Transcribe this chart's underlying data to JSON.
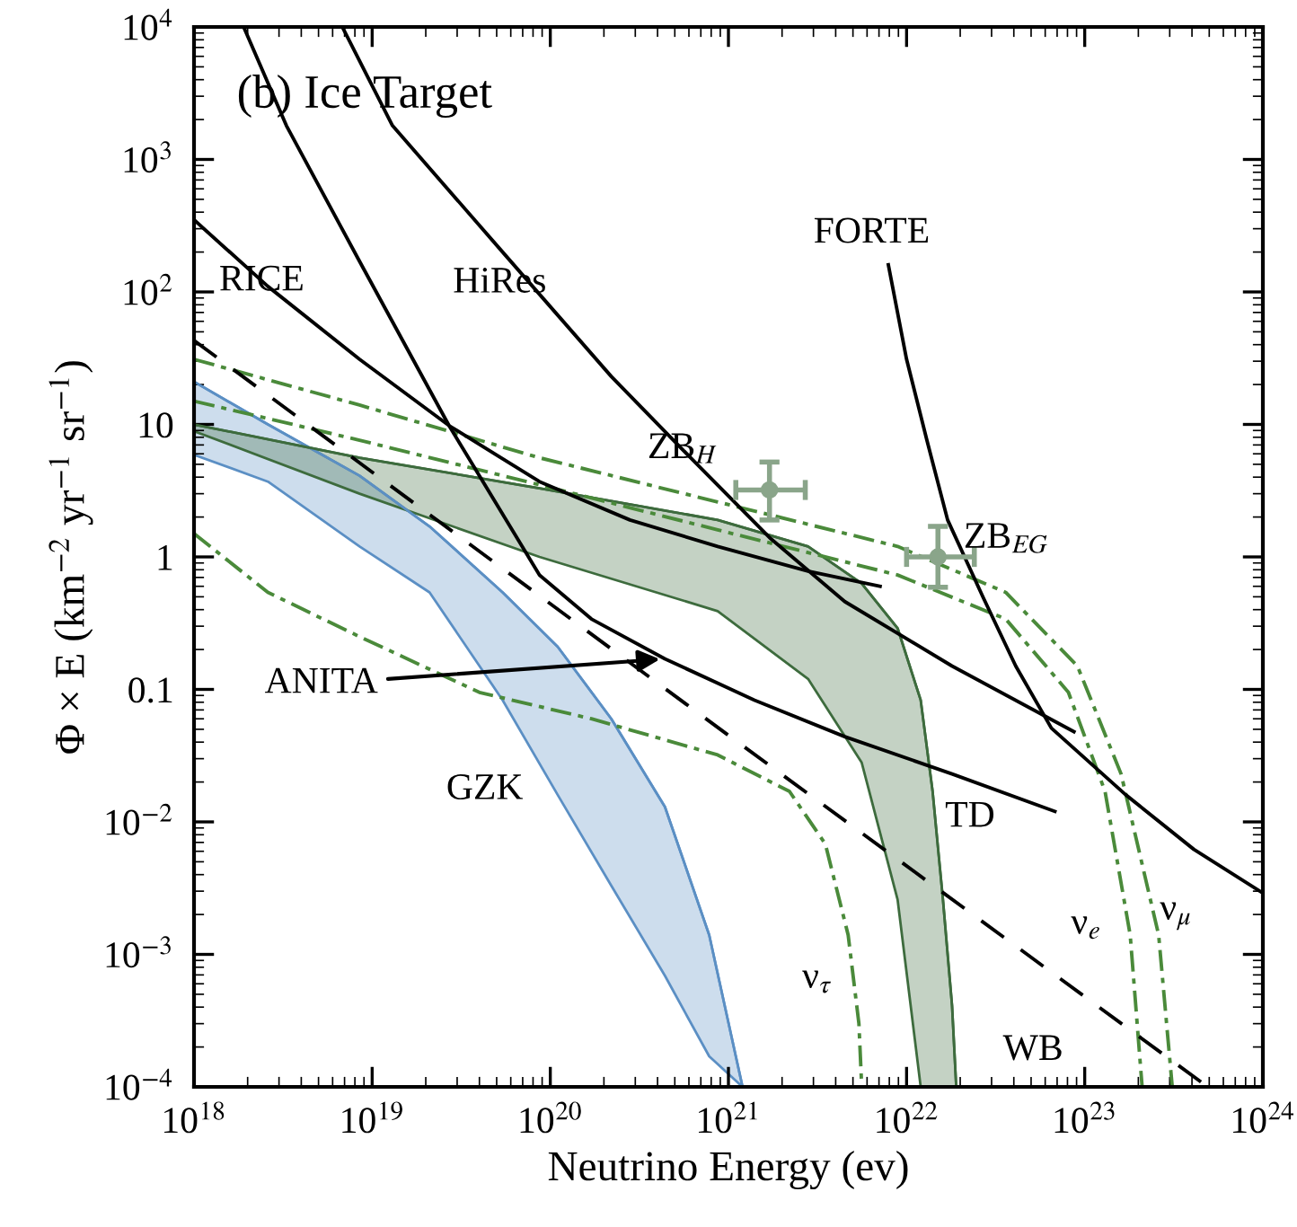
{
  "chart_data": {
    "type": "line",
    "title": "(b) Ice Target",
    "xlabel": "Neutrino Energy (ev)",
    "ylabel": "Φ × E (km$^{−2}$ yr$^{−1}$ sr$^{−1}$)",
    "log": "xy",
    "grid": false,
    "legend": false,
    "line_style": "solid",
    "marker": "none",
    "xlim": [
      1e+18,
      1e+24
    ],
    "ylim": [
      0.0001,
      10000.0
    ],
    "xticks": [
      {
        "value": 1e+18,
        "label": "10$^{18}$"
      },
      {
        "value": 1e+19,
        "label": "10$^{19}$"
      },
      {
        "value": 1e+20,
        "label": "10$^{20}$"
      },
      {
        "value": 1e+21,
        "label": "10$^{21}$"
      },
      {
        "value": 1e+22,
        "label": "10$^{22}$"
      },
      {
        "value": 1e+23,
        "label": "10$^{23}$"
      },
      {
        "value": 1e+24,
        "label": "10$^{24}$"
      }
    ],
    "yticks": [
      {
        "value": 0.0001,
        "label": "10$^{−4}$"
      },
      {
        "value": 0.001,
        "label": "10$^{−3}$"
      },
      {
        "value": 0.01,
        "label": "10$^{−2}$"
      },
      0.1,
      1,
      10,
      {
        "value": 100,
        "label": "10$^{2}$"
      },
      {
        "value": 1000,
        "label": "10$^{3}$"
      },
      {
        "value": 10000,
        "label": "10$^{4}$"
      }
    ],
    "series": [
      {
        "type": "line",
        "color": "#5b8fc4",
        "x": [
          1e+18,
          2.6e+18,
          8.5e+18,
          2.1e+19,
          5.4e+19,
          1.1e+20,
          2.2e+20,
          4.4e+20,
          7.8e+20,
          1.2e+21
        ],
        "values": [
          21,
          10,
          4.1,
          1.7,
          0.54,
          0.21,
          0.06,
          0.013,
          0.0014,
          0.0001
        ],
        "upper": [
          21,
          10,
          4.1,
          1.7,
          0.54,
          0.21,
          0.06,
          0.013,
          0.0014,
          0.0001
        ],
        "lower": [
          5.9,
          3.7,
          1.2,
          0.54,
          0.083,
          0.016,
          0.0033,
          0.00069,
          0.00017,
          0.0001
        ]
      },
      {
        "type": "line",
        "color": "#3d6b3d",
        "x": [
          1e+18,
          8.5e+18,
          8.7e+19,
          8.7e+20,
          2.8e+21,
          5.6e+21,
          8.9e+21,
          1.2e+22,
          1.4e+22,
          1.6e+22,
          1.8e+22,
          1.9e+22
        ],
        "values": [
          10,
          5.6,
          3.3,
          1.9,
          1.2,
          0.63,
          0.29,
          0.083,
          0.017,
          0.0026,
          0.00041,
          0.0001
        ],
        "upper": [
          10,
          5.6,
          3.3,
          1.9,
          1.2,
          0.63,
          0.29,
          0.083,
          0.017,
          0.0026,
          0.00041,
          0.0001
        ],
        "lower": [
          8.9,
          3.0,
          1.0,
          0.39,
          0.12,
          0.028,
          0.0026,
          0.0001,
          0.0001,
          0.0001,
          0.0001,
          0.0001
        ]
      },
      {
        "color": "#4a8a3a",
        "line_style": "dashdot",
        "x": [
          1e+18,
          8.5e+18,
          8.7e+19,
          8.7e+20,
          8.9e+21,
          3.6e+22,
          9.1e+22,
          1.6e+23,
          2.6e+23,
          3.1e+23
        ],
        "values": [
          31,
          14,
          5.6,
          2.6,
          1.2,
          0.54,
          0.15,
          0.023,
          0.0014,
          0.0001
        ]
      },
      {
        "color": "#4a8a3a",
        "line_style": "dashdot",
        "x": [
          1e+18,
          8.5e+18,
          8.7e+19,
          8.7e+20,
          8.9e+21,
          3.6e+22,
          8.1e+22,
          1.3e+23,
          1.8e+23,
          2.1e+23
        ],
        "values": [
          15,
          7.6,
          3.5,
          1.6,
          0.73,
          0.34,
          0.095,
          0.017,
          0.0014,
          0.0001
        ]
      },
      {
        "color": "#4a8a3a",
        "line_style": "dashdot",
        "x": [
          1e+18,
          2.6e+18,
          8.5e+18,
          4e+19,
          1.7e+20,
          8.7e+20,
          2.2e+21,
          3.5e+21,
          4.7e+21,
          5.4e+21,
          5.6e+21
        ],
        "values": [
          1.5,
          0.54,
          0.25,
          0.095,
          0.06,
          0.032,
          0.017,
          0.0068,
          0.0014,
          0.0003,
          0.0001
        ]
      },
      {
        "color": "#000000",
        "line_style": "dashed",
        "x": [
          1e+18,
          6.9e+20,
          4.9e+23
        ],
        "values": [
          43,
          0.065,
          0.0001
        ]
      },
      {
        "color": "#000000",
        "x": [
          1e+18,
          2.6e+18,
          8.5e+18,
          2.7e+19,
          8.7e+19,
          2.8e+20,
          8.7e+20,
          2.8e+21,
          7.1e+21
        ],
        "values": [
          350,
          110,
          31,
          9.8,
          3.7,
          1.9,
          1.2,
          0.78,
          0.6
        ]
      },
      {
        "color": "#000000",
        "x": [
          6.8e+18,
          1.3e+19,
          5.4e+19,
          2.2e+20,
          5.5e+20,
          1.7e+21,
          4.5e+21,
          1.8e+22,
          8.7e+22
        ],
        "values": [
          10000,
          1800,
          200,
          23,
          6.5,
          1.4,
          0.46,
          0.15,
          0.048
        ]
      },
      {
        "color": "#000000",
        "x": [
          1.9e+18,
          3.3e+18,
          8.5e+18,
          2.7e+19,
          8.7e+19,
          1.7e+20,
          4.4e+20,
          1.4e+21,
          4.5e+21,
          1.8e+22,
          6.8e+22
        ],
        "values": [
          10000,
          1800,
          170,
          9.8,
          0.73,
          0.34,
          0.17,
          0.083,
          0.044,
          0.023,
          0.012
        ]
      },
      {
        "color": "#000000",
        "x": [
          7.9e+21,
          1e+22,
          1.3e+22,
          1.7e+22,
          2.7e+22,
          4.1e+22,
          6.5e+22,
          1.7e+23,
          4.1e+23,
          1e+24
        ],
        "values": [
          160,
          31,
          7.6,
          1.9,
          0.49,
          0.15,
          0.051,
          0.016,
          0.0062,
          0.0029
        ]
      },
      {
        "type": "scatter",
        "color": "#8aa58a",
        "marker": "circle",
        "x": [
          1.7e+21,
          1.5e+22
        ],
        "values": [
          3.2,
          1.0
        ],
        "errors": [
          [
            1.9,
            5.2
          ],
          [
            0.59,
            1.7
          ]
        ],
        "xerrors": [
          [
            1.1e+21,
            2.7e+21
          ],
          [
            1e+22,
            2.4e+22
          ]
        ]
      }
    ],
    "annotations": [
      {
        "text": "RICE",
        "x": 2.4e+18,
        "y": 120
      },
      "HiRes",
      "FORTE",
      {
        "text": "ZB$_{H}$",
        "x": 5.5e+20,
        "y": 6.5
      },
      "ZB$_{EG}$",
      {
        "text": "ANITA",
        "x": 4.4e+20,
        "y": 0.17
      },
      "GZK",
      "TD",
      "WB",
      "ν$_{e}$",
      "ν$_{μ}$",
      "ν$_{τ}$"
    ]
  }
}
